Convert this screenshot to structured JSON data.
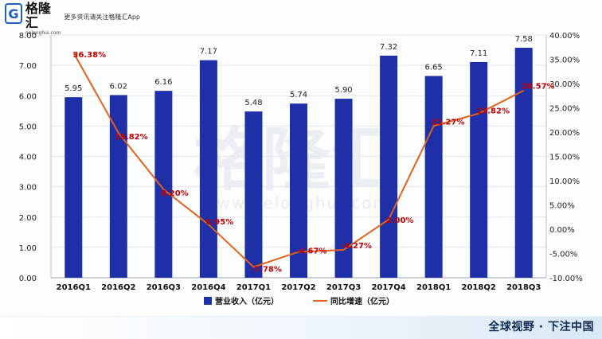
{
  "brand": {
    "name": "格隆汇",
    "domain": "gelonghui.com",
    "tagline": "更多资讯请关注格隆汇App"
  },
  "watermark": {
    "text": "格隆汇",
    "domain": "www.gelonghui.com"
  },
  "footer": {
    "slogan": "全球视野 · 下注中国"
  },
  "colors": {
    "bar": "#1f2fa8",
    "line": "#e0621a",
    "pct_label": "#c00000",
    "accent_brand": "#1f5fb7"
  },
  "chart_data": {
    "type": "bar",
    "categories": [
      "2016Q1",
      "2016Q2",
      "2016Q3",
      "2016Q4",
      "2017Q1",
      "2017Q2",
      "2017Q3",
      "2017Q4",
      "2018Q1",
      "2018Q2",
      "2018Q3"
    ],
    "y1_ticks": [
      "0.00",
      "1.00",
      "2.00",
      "3.00",
      "4.00",
      "5.00",
      "6.00",
      "7.00",
      "8.00"
    ],
    "y2_ticks": [
      "-10.00%",
      "-5.00%",
      "0.00%",
      "5.00%",
      "10.00%",
      "15.00%",
      "20.00%",
      "25.00%",
      "30.00%",
      "35.00%",
      "40.00%"
    ],
    "y1lim": [
      0,
      8
    ],
    "y2lim": [
      -10,
      40
    ],
    "grid": true,
    "legend_position": "bottom",
    "series": [
      {
        "name": "营业收入（亿元）",
        "type": "bar",
        "axis": "left",
        "values": [
          5.95,
          6.02,
          6.16,
          7.17,
          5.48,
          5.74,
          5.9,
          7.32,
          6.65,
          7.11,
          7.58
        ],
        "labels": [
          "5.95",
          "6.02",
          "6.16",
          "7.17",
          "5.48",
          "5.74",
          "5.90",
          "7.32",
          "6.65",
          "7.11",
          "7.58"
        ]
      },
      {
        "name": "同比增速（亿元）",
        "type": "line",
        "axis": "right",
        "values": [
          36.38,
          19.82,
          8.2,
          0.95,
          -7.78,
          -4.67,
          -4.27,
          2.0,
          21.27,
          23.82,
          28.57
        ],
        "labels": [
          "36.38%",
          "19.82%",
          "8.20%",
          "0.95%",
          "-7.78%",
          "-4.67%",
          "-4.27%",
          "2.00%",
          "21.27%",
          "23.82%",
          "28.57%"
        ]
      }
    ]
  }
}
